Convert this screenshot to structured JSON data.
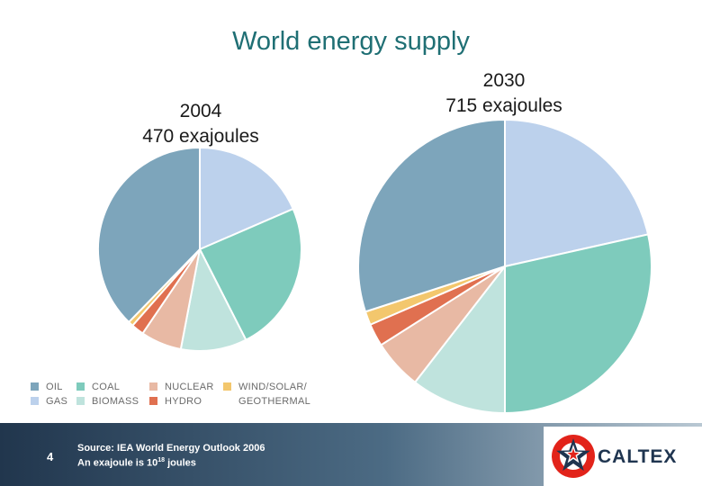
{
  "title": "World energy supply",
  "chart_data": [
    {
      "type": "pie",
      "label_line1": "2004",
      "label_line2": "470 exajoules",
      "slices": [
        {
          "name": "GAS",
          "value": 18.5,
          "color": "#bcd1ec"
        },
        {
          "name": "COAL",
          "value": 24.0,
          "color": "#7ecbbc"
        },
        {
          "name": "BIOMASS",
          "value": 10.5,
          "color": "#bfe3dd"
        },
        {
          "name": "NUCLEAR",
          "value": 6.5,
          "color": "#e8b9a4"
        },
        {
          "name": "HYDRO",
          "value": 2.0,
          "color": "#e07050"
        },
        {
          "name": "WIND/SOLAR/GEOTHERMAL",
          "value": 0.8,
          "color": "#f3c76d"
        },
        {
          "name": "OIL",
          "value": 37.7,
          "color": "#7da5bb"
        }
      ]
    },
    {
      "type": "pie",
      "label_line1": "2030",
      "label_line2": "715 exajoules",
      "slices": [
        {
          "name": "GAS",
          "value": 21.5,
          "color": "#bcd1ec"
        },
        {
          "name": "COAL",
          "value": 28.5,
          "color": "#7ecbbc"
        },
        {
          "name": "BIOMASS",
          "value": 10.5,
          "color": "#bfe3dd"
        },
        {
          "name": "NUCLEAR",
          "value": 5.5,
          "color": "#e8b9a4"
        },
        {
          "name": "HYDRO",
          "value": 2.5,
          "color": "#e07050"
        },
        {
          "name": "WIND/SOLAR/GEOTHERMAL",
          "value": 1.5,
          "color": "#f3c76d"
        },
        {
          "name": "OIL",
          "value": 30.0,
          "color": "#7da5bb"
        }
      ]
    }
  ],
  "legend": [
    {
      "label": "OIL",
      "color": "#7da5bb"
    },
    {
      "label": "COAL",
      "color": "#7ecbbc"
    },
    {
      "label": "NUCLEAR",
      "color": "#e8b9a4"
    },
    {
      "label": "WIND/SOLAR/",
      "color": "#f3c76d"
    },
    {
      "label": "GAS",
      "color": "#bcd1ec"
    },
    {
      "label": "BIOMASS",
      "color": "#bfe3dd"
    },
    {
      "label": "HYDRO",
      "color": "#e07050"
    },
    {
      "label": "GEOTHERMAL",
      "color": ""
    }
  ],
  "footer": {
    "slide_number": "4",
    "source_line1": "Source: IEA World Energy Outlook 2006",
    "source_line2_prefix": "An exajoule is 10",
    "source_line2_exp": "18",
    "source_line2_suffix": " joules",
    "logo_text": "CALTEX",
    "logo_colors": {
      "red": "#e2231a",
      "navy": "#1f3550"
    }
  }
}
